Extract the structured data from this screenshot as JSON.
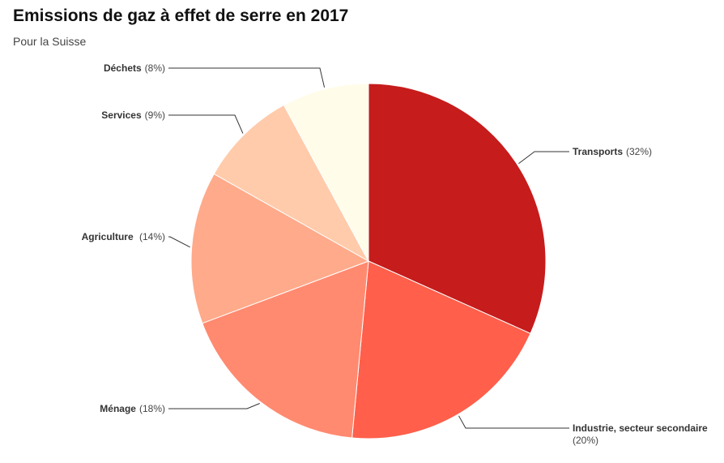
{
  "header": {
    "title": "Emissions de gaz à effet de serre en 2017",
    "subtitle": "Pour la Suisse"
  },
  "chart_data": {
    "type": "pie",
    "title": "Emissions de gaz à effet de serre en 2017",
    "subtitle": "Pour la Suisse",
    "legend": "none (direct labels with leader lines)",
    "slices": [
      {
        "name": "Transports",
        "pct_label": "(32%)",
        "value": 32,
        "color": "#c61c1c"
      },
      {
        "name": "Industrie, secteur secondaire",
        "pct_label": "(20%)",
        "value": 20,
        "color": "#ff5f4b"
      },
      {
        "name": "Ménage",
        "pct_label": "(18%)",
        "value": 18,
        "color": "#ff8a70"
      },
      {
        "name": "Agriculture ",
        "pct_label": "(14%)",
        "value": 14,
        "color": "#ffaa8a"
      },
      {
        "name": "Services",
        "pct_label": "(9%)",
        "value": 9,
        "color": "#ffcbab"
      },
      {
        "name": "Déchets",
        "pct_label": "(8%)",
        "value": 8,
        "color": "#fffcea"
      }
    ]
  }
}
